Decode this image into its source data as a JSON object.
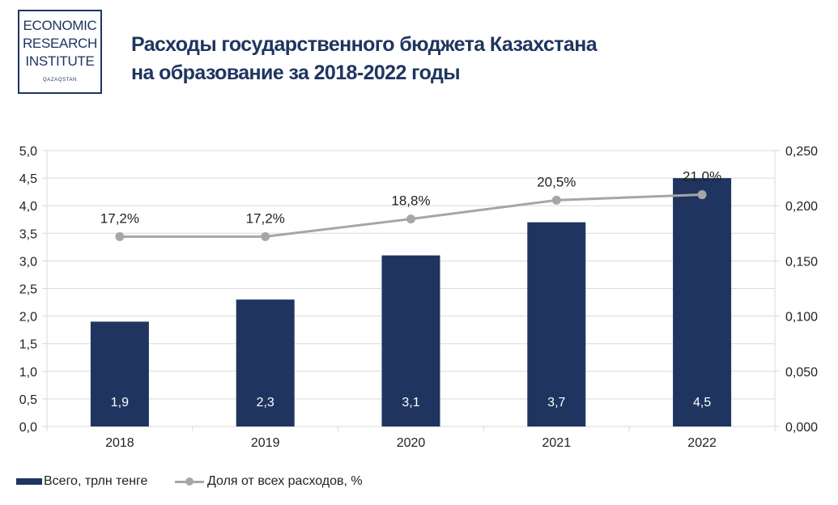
{
  "logo": {
    "line1": "ECONOMIC",
    "line2": "RESEARCH",
    "line3": "INSTITUTE",
    "sub": "QAZAQSTAN"
  },
  "colors": {
    "bar": "#1f3560",
    "line": "#a6a6a6",
    "grid": "#d9d9d9",
    "title": "#1f3560"
  },
  "legend": {
    "bars_label": "Всего, трлн тенге",
    "line_label": "Доля от всех расходов, %"
  },
  "chart_data": {
    "type": "bar",
    "title_lines": [
      "Расходы государственного бюджета Казахстана",
      "на образование за 2018-2022 годы"
    ],
    "categories": [
      "2018",
      "2019",
      "2020",
      "2021",
      "2022"
    ],
    "series": [
      {
        "name": "Всего, трлн тенге",
        "type": "bar",
        "axis": "left",
        "values": [
          1.9,
          2.3,
          3.1,
          3.7,
          4.5
        ],
        "labels": [
          "1,9",
          "2,3",
          "3,1",
          "3,7",
          "4,5"
        ]
      },
      {
        "name": "Доля от всех расходов, %",
        "type": "line",
        "axis": "right",
        "values": [
          0.172,
          0.172,
          0.188,
          0.205,
          0.21
        ],
        "labels": [
          "17,2%",
          "17,2%",
          "18,8%",
          "20,5%",
          "21,0%"
        ]
      }
    ],
    "y_left": {
      "range": [
        0,
        5
      ],
      "ticks": [
        "0,0",
        "0,5",
        "1,0",
        "1,5",
        "2,0",
        "2,5",
        "3,0",
        "3,5",
        "4,0",
        "4,5",
        "5,0"
      ]
    },
    "y_right": {
      "range": [
        0,
        0.25
      ],
      "ticks": [
        "0,000",
        "0,050",
        "0,100",
        "0,150",
        "0,200",
        "0,250"
      ]
    },
    "grid": true,
    "legend_position": "bottom-left"
  }
}
